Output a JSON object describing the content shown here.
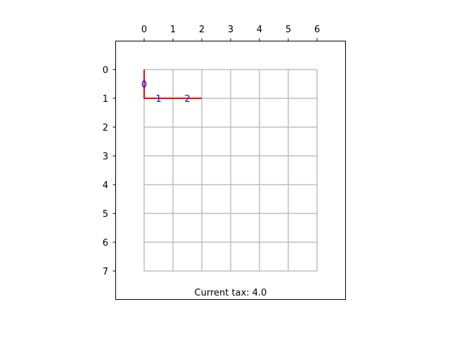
{
  "grid": {
    "columns": [
      0,
      1,
      2,
      3,
      4,
      5,
      6
    ],
    "rows": [
      0,
      1,
      2,
      3,
      4,
      5,
      6,
      7
    ],
    "line_color": "#bfbfbf"
  },
  "path": {
    "color": "#ff0000",
    "points": [
      [
        0,
        0
      ],
      [
        0,
        1
      ],
      [
        1,
        1
      ],
      [
        2,
        1
      ]
    ]
  },
  "steps": [
    {
      "label": "0",
      "col": 0,
      "row": 0.5
    },
    {
      "label": "1",
      "col": 0.5,
      "row": 1
    },
    {
      "label": "2",
      "col": 1.5,
      "row": 1
    }
  ],
  "step_color": "#0000ff",
  "status": {
    "tax_text": "Current tax: 4.0"
  }
}
